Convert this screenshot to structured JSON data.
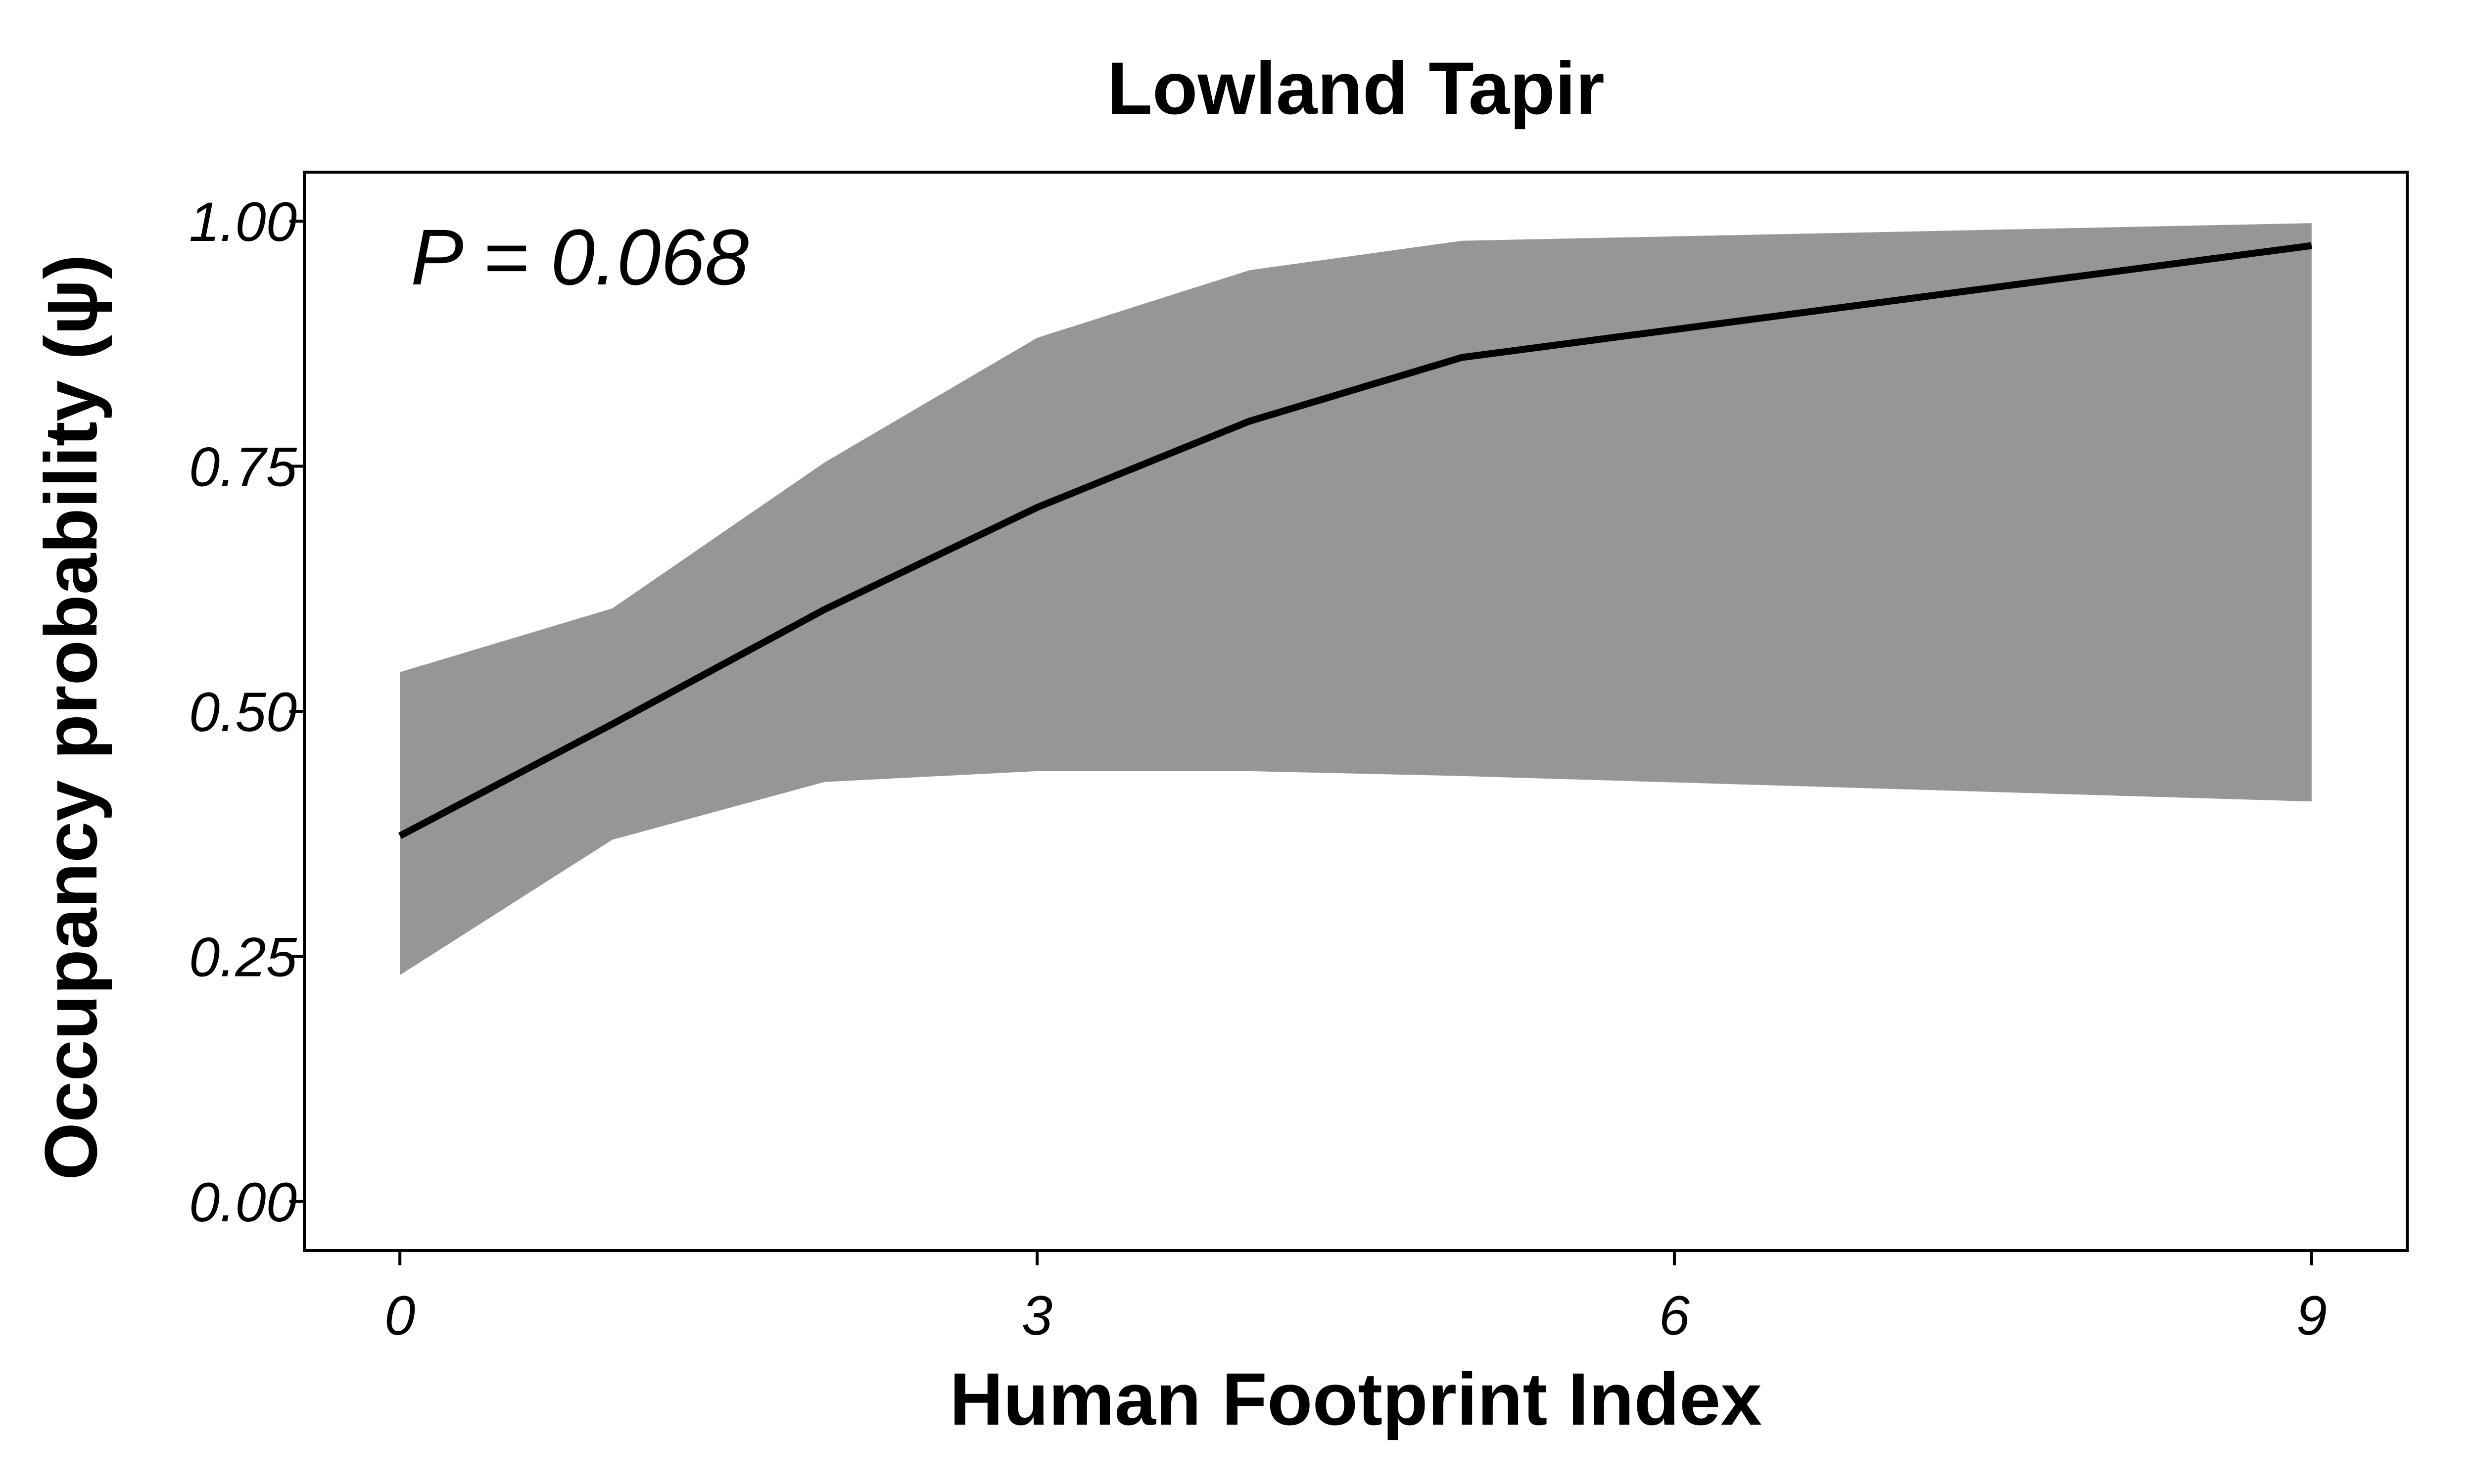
{
  "chart_data": {
    "type": "line",
    "title": "Lowland Tapir",
    "xlabel": "Human Footprint Index",
    "ylabel": "Occupancy probability (ψ)",
    "annotation": "P = 0.068",
    "xlim": [
      -0.45,
      9.45
    ],
    "ylim": [
      -0.05,
      1.05
    ],
    "x_ticks": [
      0,
      3,
      6,
      9
    ],
    "x_tick_labels": [
      "0",
      "3",
      "6",
      "9"
    ],
    "y_ticks": [
      0.0,
      0.25,
      0.5,
      0.75,
      1.0
    ],
    "y_tick_labels": [
      "0.00",
      "0.25",
      "0.50",
      "0.75",
      "1.00"
    ],
    "grid": false,
    "series": [
      {
        "x": [
          0,
          1,
          2,
          3,
          4,
          5,
          9
        ],
        "values": [
          0.373,
          0.487,
          0.604,
          0.708,
          0.796,
          0.861,
          0.975
        ],
        "lower": [
          0.231,
          0.369,
          0.428,
          0.439,
          0.439,
          0.434,
          0.408
        ],
        "upper": [
          0.54,
          0.605,
          0.754,
          0.881,
          0.95,
          0.98,
          0.998
        ]
      }
    ],
    "colors": {
      "line": "#000000",
      "ribbon": "#969696",
      "background": "#ffffff"
    }
  }
}
